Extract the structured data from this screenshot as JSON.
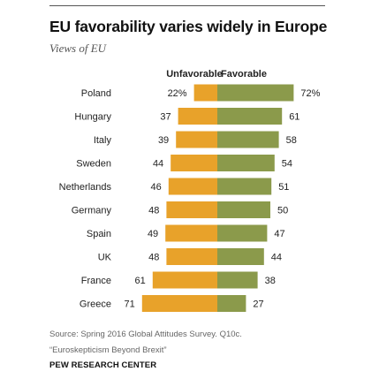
{
  "header": {
    "title": "EU favorability varies widely in Europe",
    "subtitle": "Views of EU"
  },
  "footer": {
    "source_line1": "Source: Spring 2016 Global Attitudes Survey. Q10c.",
    "source_line2": "“Euroskepticism Beyond Brexit”",
    "brand": "PEW RESEARCH CENTER"
  },
  "colors": {
    "unfavorable": "#E8A22A",
    "favorable": "#8B9A4B"
  },
  "chart_data": {
    "type": "bar",
    "orientation": "diverging-horizontal",
    "categories": [
      "Poland",
      "Hungary",
      "Italy",
      "Sweden",
      "Netherlands",
      "Germany",
      "Spain",
      "UK",
      "France",
      "Greece"
    ],
    "series": [
      {
        "name": "Unfavorable",
        "values": [
          22,
          37,
          39,
          44,
          46,
          48,
          49,
          48,
          61,
          71
        ]
      },
      {
        "name": "Favorable",
        "values": [
          72,
          61,
          58,
          54,
          51,
          50,
          47,
          44,
          38,
          27
        ]
      }
    ],
    "first_row_labels": {
      "unfavorable": "22%",
      "favorable": "72%"
    },
    "value_unit": "%"
  }
}
